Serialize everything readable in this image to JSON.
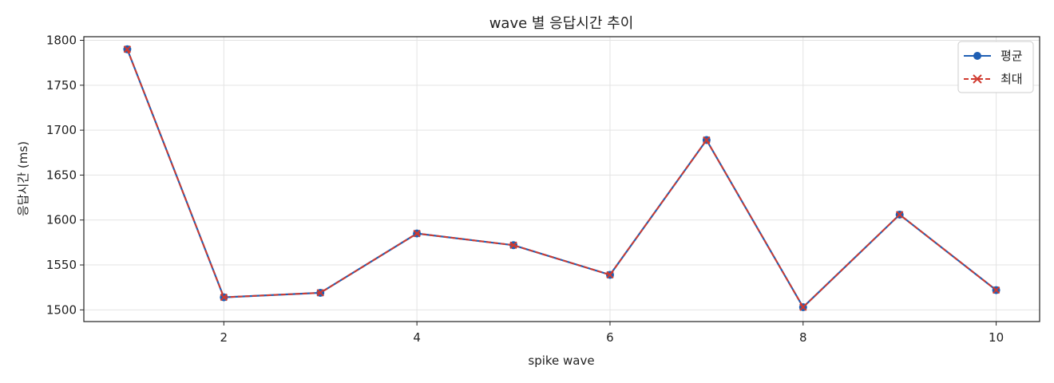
{
  "chart_data": {
    "type": "line",
    "title": "wave 별 응답시간 추이",
    "xlabel": "spike wave",
    "ylabel": "응답시간 (ms)",
    "xlim": [
      0.55,
      10.45
    ],
    "ylim": [
      1487,
      1804
    ],
    "x_ticks": [
      2,
      4,
      6,
      8,
      10
    ],
    "y_ticks": [
      1500,
      1550,
      1600,
      1650,
      1700,
      1750,
      1800
    ],
    "grid": true,
    "legend_position": "top-right",
    "x": [
      1,
      2,
      3,
      4,
      5,
      6,
      7,
      8,
      9,
      10
    ],
    "series": [
      {
        "name": "평균",
        "values": [
          1790,
          1514,
          1519,
          1585,
          1572,
          1539,
          1689,
          1503,
          1606,
          1522
        ],
        "color": "#1f5fb4",
        "marker": "circle",
        "line_style": "solid"
      },
      {
        "name": "최대",
        "values": [
          1790,
          1514,
          1519,
          1585,
          1572,
          1539,
          1689,
          1503,
          1606,
          1522
        ],
        "color": "#d03a2f",
        "marker": "x",
        "line_style": "dashed"
      }
    ]
  }
}
